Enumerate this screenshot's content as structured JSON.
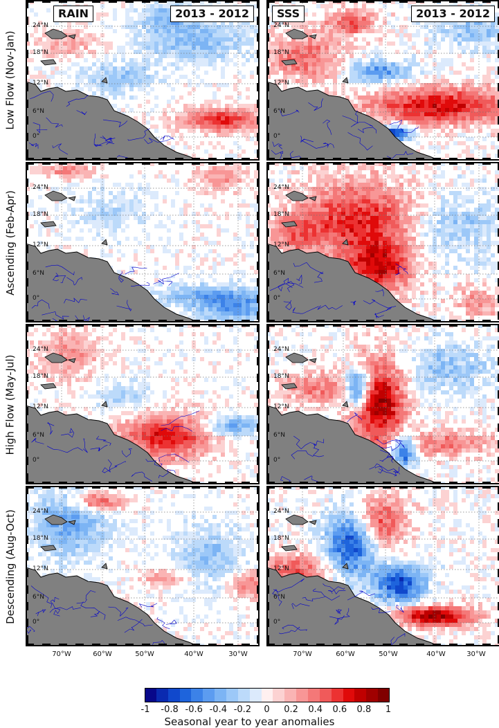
{
  "left_title": "RAIN",
  "right_title": "SSS",
  "period": "2013 - 2012",
  "rows": [
    {
      "label": "Low Flow (Nov-Jan)"
    },
    {
      "label": "Ascending (Feb-Apr)"
    },
    {
      "label": "High Flow (May-Jul)"
    },
    {
      "label": "Descending (Aug-Oct)"
    }
  ],
  "lat_ticks": [
    "24°N",
    "18°N",
    "12°N",
    "6°N",
    "0°"
  ],
  "lon_ticks": [
    "70°W",
    "60°W",
    "50°W",
    "40°W",
    "30°W"
  ],
  "colorbar": {
    "ticks": [
      "-1",
      "-0.8",
      "-0.6",
      "-0.4",
      "-0.2",
      "0",
      "0.2",
      "0.4",
      "0.6",
      "0.8",
      "1"
    ],
    "title": "Seasonal year to year anomalies",
    "colors": [
      "#08088a",
      "#0a2ab0",
      "#1048cc",
      "#1e64dc",
      "#3c82e8",
      "#5c9cf0",
      "#7cb4f4",
      "#9cc8f8",
      "#bcdafa",
      "#dceafc",
      "#fff0f0",
      "#fcd2d2",
      "#fab4b4",
      "#f89696",
      "#f47878",
      "#f05a5a",
      "#ec3232",
      "#e00a0a",
      "#c00000",
      "#a00000",
      "#800000"
    ]
  },
  "land_color": "#808080",
  "river_color": "#0000cc"
}
